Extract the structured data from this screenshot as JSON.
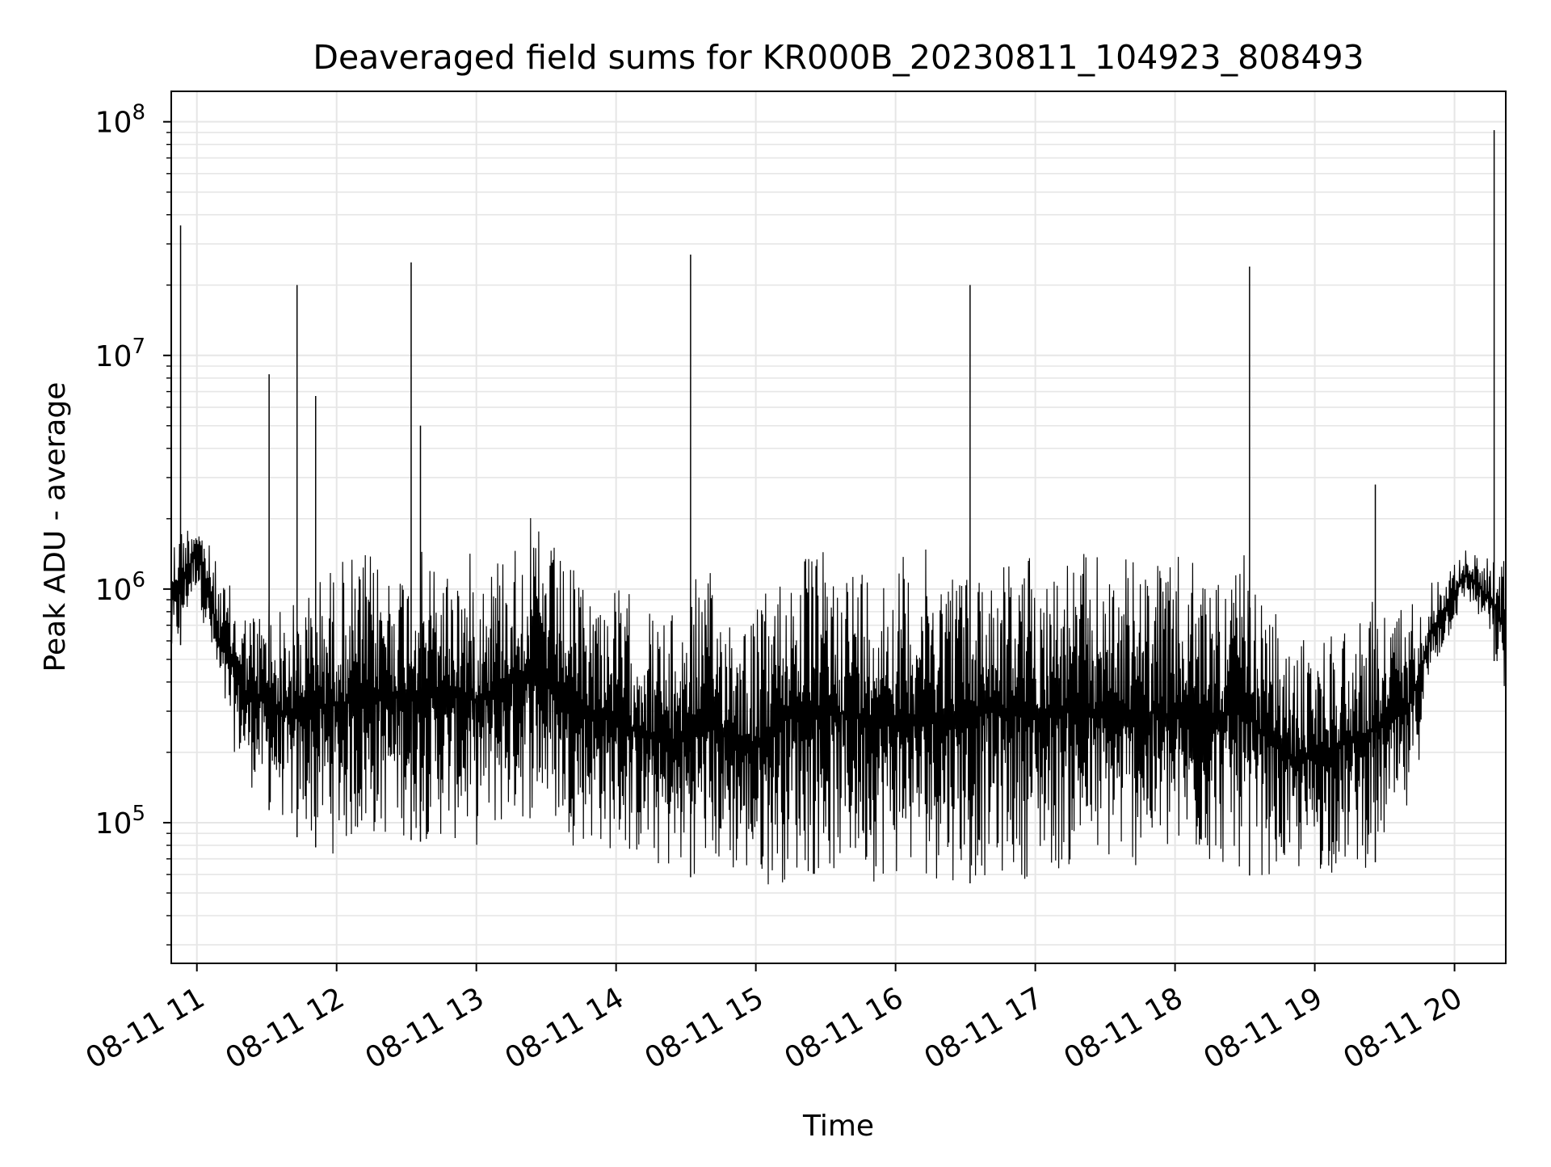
{
  "chart_data": {
    "type": "line",
    "title": "Deaveraged field sums for KR000B_20230811_104923_808493",
    "xlabel": "Time",
    "ylabel": "Peak ADU - average",
    "yscale": "log",
    "grid": true,
    "legend": "none",
    "line_color": "#000000",
    "grid_color": "#e6e6e6",
    "x_ticks": [
      "08-11 11",
      "08-11 12",
      "08-11 13",
      "08-11 14",
      "08-11 15",
      "08-11 16",
      "08-11 17",
      "08-11 18",
      "08-11 19",
      "08-11 20"
    ],
    "y_ticks": [
      {
        "base": "10",
        "exp": "5",
        "value": 100000
      },
      {
        "base": "10",
        "exp": "6",
        "value": 1000000
      },
      {
        "base": "10",
        "exp": "7",
        "value": 10000000
      },
      {
        "base": "10",
        "exp": "8",
        "value": 100000000
      }
    ],
    "xlim": [
      "2023-08-11 10:49",
      "2023-08-11 20:22"
    ],
    "ylim": [
      25000,
      135000000
    ],
    "spikes": [
      {
        "x": "2023-08-11 10:53",
        "y": 36000000
      },
      {
        "x": "2023-08-11 11:31",
        "y": 8300000
      },
      {
        "x": "2023-08-11 11:43",
        "y": 20000000
      },
      {
        "x": "2023-08-11 11:51",
        "y": 6700000
      },
      {
        "x": "2023-08-11 12:32",
        "y": 25000000
      },
      {
        "x": "2023-08-11 12:36",
        "y": 5000000
      },
      {
        "x": "2023-08-11 14:32",
        "y": 27000000
      },
      {
        "x": "2023-08-11 16:32",
        "y": 20000000
      },
      {
        "x": "2023-08-11 18:32",
        "y": 24000000
      },
      {
        "x": "2023-08-11 19:26",
        "y": 2800000
      },
      {
        "x": "2023-08-11 20:17",
        "y": 92000000
      }
    ],
    "envelope": [
      {
        "x": "2023-08-11 10:49",
        "upper": 1800000,
        "lower": 420000
      },
      {
        "x": "2023-08-11 11:00",
        "upper": 2200000,
        "lower": 1000000
      },
      {
        "x": "2023-08-11 11:10",
        "upper": 1200000,
        "lower": 300000
      },
      {
        "x": "2023-08-11 11:20",
        "upper": 900000,
        "lower": 150000
      },
      {
        "x": "2023-08-11 11:40",
        "upper": 900000,
        "lower": 90000
      },
      {
        "x": "2023-08-11 12:00",
        "upper": 1500000,
        "lower": 70000
      },
      {
        "x": "2023-08-11 12:30",
        "upper": 1500000,
        "lower": 85000
      },
      {
        "x": "2023-08-11 13:00",
        "upper": 1500000,
        "lower": 75000
      },
      {
        "x": "2023-08-11 13:25",
        "upper": 2100000,
        "lower": 100000
      },
      {
        "x": "2023-08-11 13:40",
        "upper": 1300000,
        "lower": 80000
      },
      {
        "x": "2023-08-11 14:00",
        "upper": 1100000,
        "lower": 70000
      },
      {
        "x": "2023-08-11 14:25",
        "upper": 800000,
        "lower": 55000
      },
      {
        "x": "2023-08-11 14:35",
        "upper": 1300000,
        "lower": 60000
      },
      {
        "x": "2023-08-11 15:00",
        "upper": 900000,
        "lower": 50000
      },
      {
        "x": "2023-08-11 15:15",
        "upper": 1600000,
        "lower": 55000
      },
      {
        "x": "2023-08-11 16:00",
        "upper": 1500000,
        "lower": 55000
      },
      {
        "x": "2023-08-11 16:40",
        "upper": 1600000,
        "lower": 55000
      },
      {
        "x": "2023-08-11 17:30",
        "upper": 1500000,
        "lower": 60000
      },
      {
        "x": "2023-08-11 18:00",
        "upper": 1400000,
        "lower": 60000
      },
      {
        "x": "2023-08-11 18:30",
        "upper": 1400000,
        "lower": 60000
      },
      {
        "x": "2023-08-11 18:50",
        "upper": 600000,
        "lower": 55000
      },
      {
        "x": "2023-08-11 19:20",
        "upper": 900000,
        "lower": 60000
      },
      {
        "x": "2023-08-11 19:40",
        "upper": 1000000,
        "lower": 90000
      },
      {
        "x": "2023-08-11 19:50",
        "upper": 1100000,
        "lower": 400000
      },
      {
        "x": "2023-08-11 20:05",
        "upper": 1500000,
        "lower": 900000
      },
      {
        "x": "2023-08-11 20:15",
        "upper": 1400000,
        "lower": 600000
      },
      {
        "x": "2023-08-11 20:22",
        "upper": 1500000,
        "lower": 300000
      }
    ]
  }
}
